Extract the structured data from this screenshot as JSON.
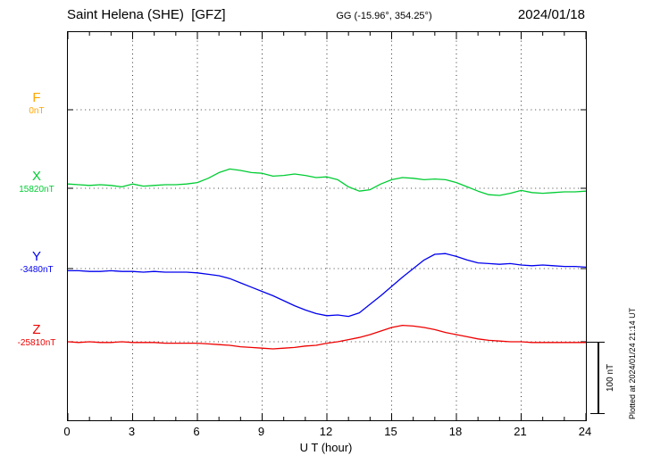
{
  "header": {
    "station": "Saint Helena (SHE)  [GFZ]",
    "coords": "GG (-15.96°, 354.25°)",
    "date": "2024/01/18"
  },
  "footer_note": "Plotted at 2024/01/24 21:14 UT",
  "chart_data": {
    "type": "line",
    "title": "Saint Helena (SHE) [GFZ] magnetogram 2024/01/18",
    "xlabel": "U T (hour)",
    "xlim": [
      0,
      24
    ],
    "x_ticks": [
      0,
      3,
      6,
      9,
      12,
      15,
      18,
      21,
      24
    ],
    "step_hours": 0.5,
    "grid": "dotted vertical at 3h intervals, dotted horizontal at each component baseline",
    "scale_bar": {
      "label": "100 nT",
      "nT": 100
    },
    "series": [
      {
        "name": "F",
        "color": "#ffa500",
        "baseline_label": "0nT",
        "baseline_nT": 0,
        "offsets_nT": []
      },
      {
        "name": "X",
        "color": "#00cc33",
        "baseline_label": "15820nT",
        "baseline_nT": 15820,
        "offsets_nT": [
          6,
          5,
          4,
          5,
          4,
          2,
          6,
          3,
          4,
          5,
          5,
          6,
          8,
          14,
          22,
          27,
          25,
          22,
          21,
          17,
          18,
          20,
          18,
          15,
          16,
          12,
          2,
          -4,
          -2,
          6,
          12,
          15,
          14,
          12,
          13,
          12,
          8,
          2,
          -4,
          -9,
          -10,
          -7,
          -3,
          -6,
          -7,
          -6,
          -5,
          -5,
          -4
        ]
      },
      {
        "name": "Y",
        "color": "#0000ee",
        "baseline_label": "-3480nT",
        "baseline_nT": -3480,
        "offsets_nT": [
          -3,
          -3,
          -4,
          -4,
          -3,
          -4,
          -4,
          -5,
          -4,
          -5,
          -5,
          -5,
          -6,
          -8,
          -10,
          -14,
          -20,
          -26,
          -32,
          -38,
          -45,
          -52,
          -58,
          -63,
          -66,
          -65,
          -67,
          -62,
          -50,
          -38,
          -25,
          -12,
          0,
          12,
          20,
          21,
          17,
          12,
          8,
          7,
          6,
          7,
          5,
          4,
          5,
          4,
          3,
          3,
          2
        ]
      },
      {
        "name": "Z",
        "color": "#ee0000",
        "baseline_label": "-25810nT",
        "baseline_nT": -25810,
        "offsets_nT": [
          0,
          -1,
          0,
          -1,
          -1,
          0,
          -1,
          -1,
          -1,
          -2,
          -2,
          -2,
          -2,
          -3,
          -4,
          -5,
          -7,
          -8,
          -9,
          -10,
          -9,
          -8,
          -6,
          -5,
          -2,
          0,
          3,
          6,
          10,
          15,
          20,
          23,
          22,
          20,
          17,
          13,
          10,
          7,
          4,
          2,
          1,
          0,
          0,
          -1,
          -1,
          -1,
          -1,
          -1,
          -1
        ]
      }
    ]
  }
}
